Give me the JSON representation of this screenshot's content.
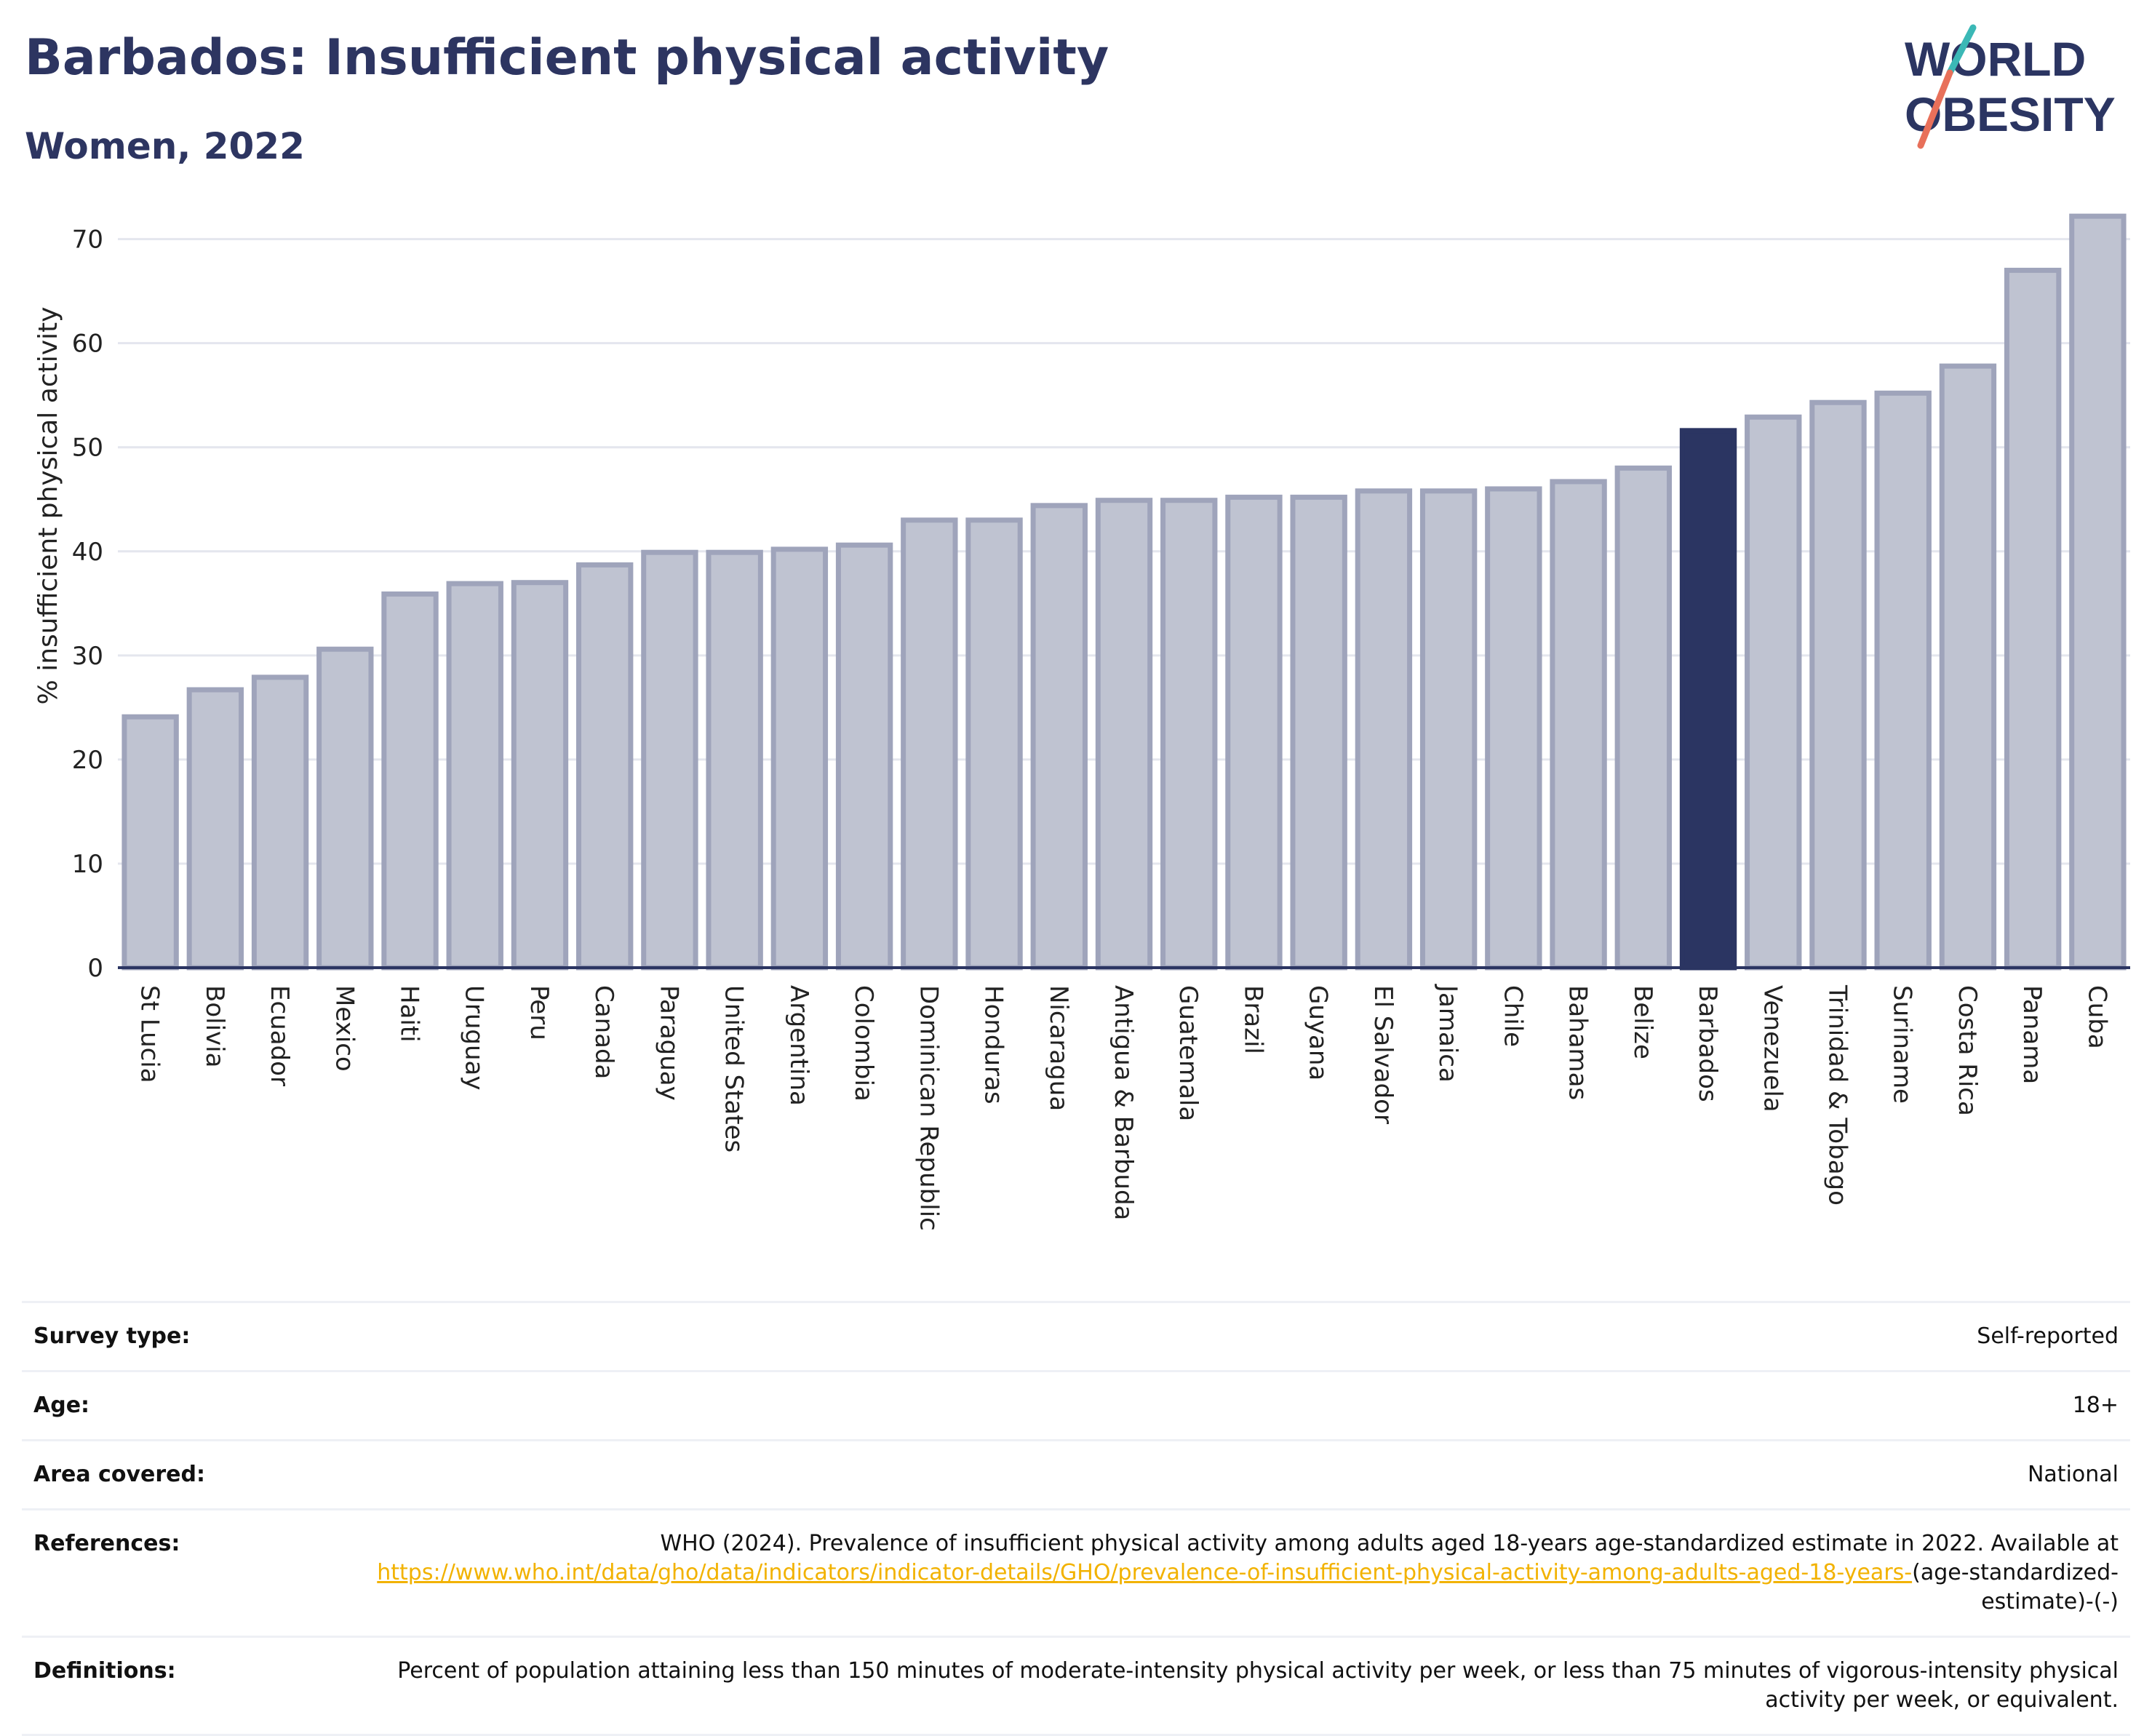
{
  "header": {
    "title": "Barbados: Insufficient physical activity",
    "subtitle": "Women, 2022"
  },
  "logo": {
    "line1": "WORLD",
    "line2": "OBESITY"
  },
  "colors": {
    "bar": "#bfc3d1",
    "bar_border": "#9fa4bb",
    "highlight": "#2b3562",
    "grid": "#e4e6ee",
    "axis": "#2b3562",
    "link": "#f2b200"
  },
  "chart_data": {
    "type": "bar",
    "ylabel": "% insufficient physical activity",
    "ylim": [
      0,
      72
    ],
    "yticks": [
      0,
      10,
      20,
      30,
      40,
      50,
      60,
      70
    ],
    "highlight": "Barbados",
    "categories": [
      "St Lucia",
      "Bolivia",
      "Ecuador",
      "Mexico",
      "Haiti",
      "Uruguay",
      "Peru",
      "Canada",
      "Paraguay",
      "United States",
      "Argentina",
      "Colombia",
      "Dominican Republic",
      "Honduras",
      "Nicaragua",
      "Antigua & Barbuda",
      "Guatemala",
      "Brazil",
      "Guyana",
      "El Salvador",
      "Jamaica",
      "Chile",
      "Bahamas",
      "Belize",
      "Barbados",
      "Venezuela",
      "Trinidad & Tobago",
      "Suriname",
      "Costa Rica",
      "Panama",
      "Cuba"
    ],
    "values": [
      24.1,
      26.7,
      27.9,
      30.6,
      35.9,
      36.9,
      37.0,
      38.7,
      39.9,
      39.9,
      40.2,
      40.6,
      43.0,
      43.0,
      44.4,
      44.9,
      44.9,
      45.2,
      45.2,
      45.8,
      45.8,
      46.0,
      46.7,
      48.0,
      51.6,
      52.9,
      54.3,
      55.2,
      57.8,
      67.0,
      72.2
    ],
    "grid": true
  },
  "info": {
    "survey_type": {
      "label": "Survey type:",
      "value": "Self-reported"
    },
    "age": {
      "label": "Age:",
      "value": "18+"
    },
    "area": {
      "label": "Area covered:",
      "value": "National"
    },
    "references": {
      "label": "References:",
      "text": "WHO (2024). Prevalence of insufficient physical activity among adults aged 18-years age-standardized estimate in 2022. Available at",
      "link": "https://www.who.int/data/gho/data/indicators/indicator-details/GHO/prevalence-of-insufficient-physical-activity-among-adults-aged-18-years-",
      "suffix": "(age-standardized-estimate)-(-)"
    },
    "definitions": {
      "label": "Definitions:",
      "value": "Percent of population attaining less than 150 minutes of moderate-intensity physical activity per week, or less than 75 minutes of vigorous-intensity physical activity per week, or equivalent."
    }
  }
}
